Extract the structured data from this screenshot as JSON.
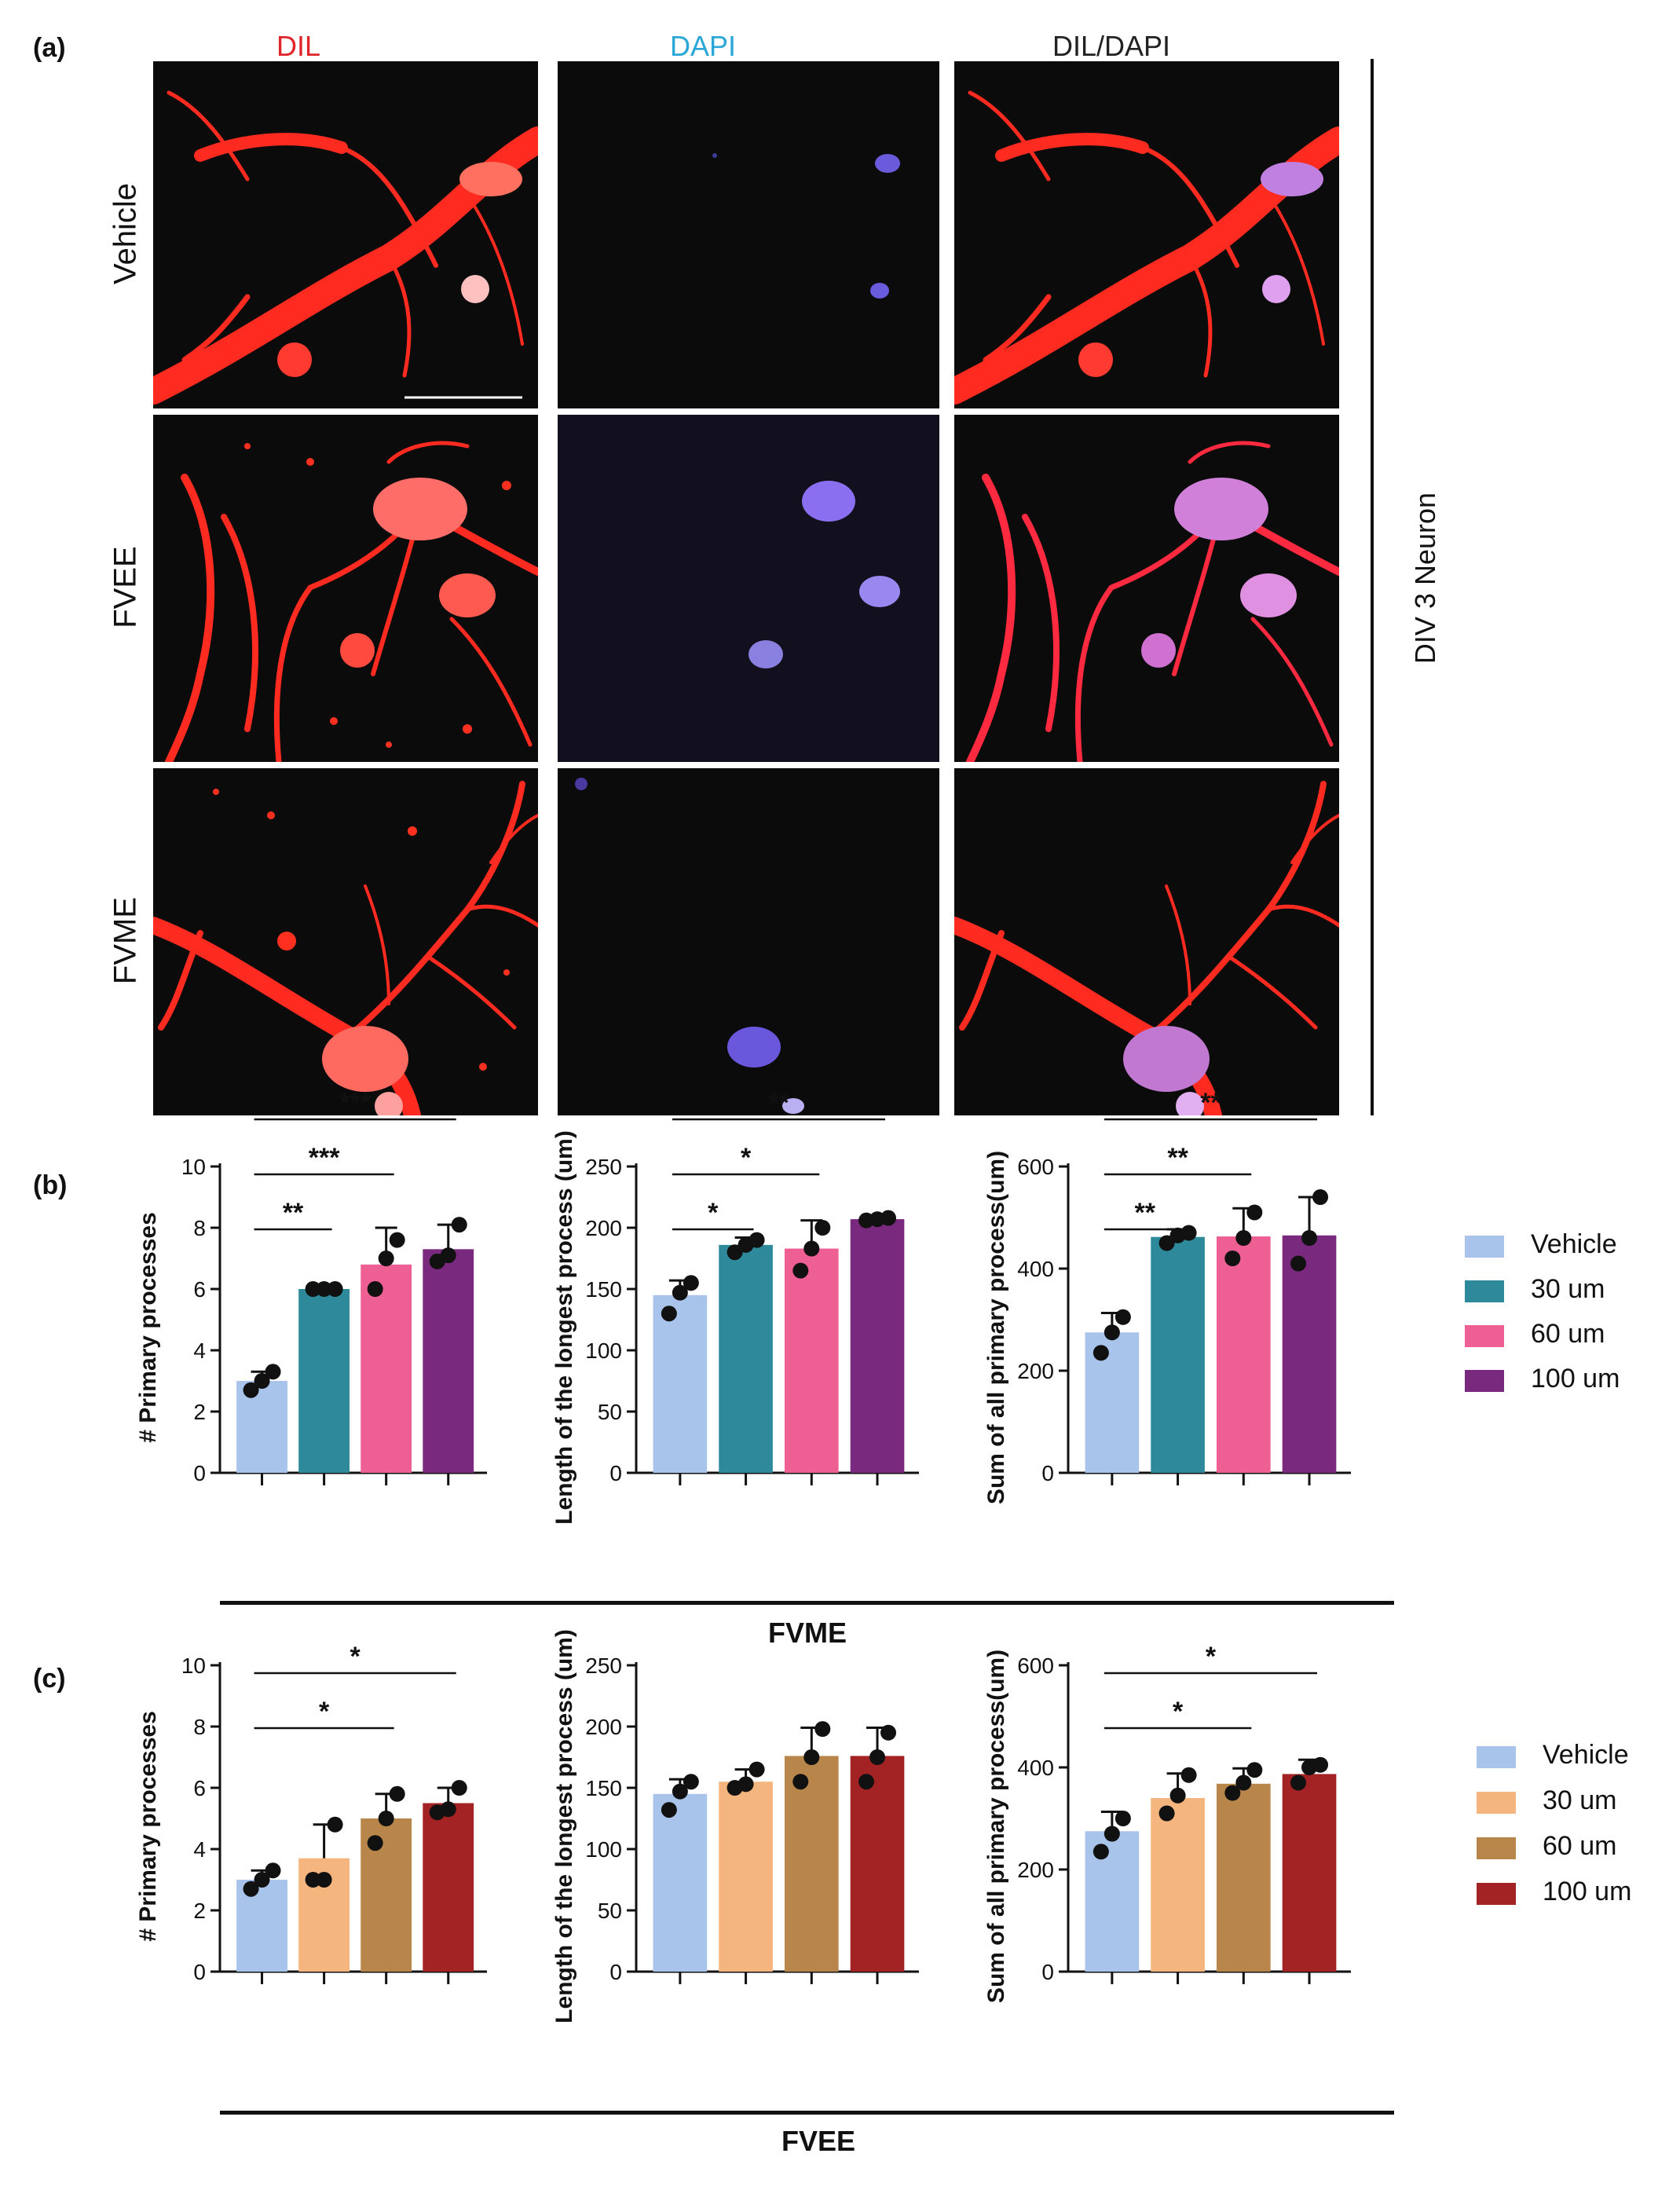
{
  "panel_a": {
    "letter": "(a)",
    "columns": [
      {
        "label": "DIL",
        "color": "#e0262a"
      },
      {
        "label": "DAPI",
        "color": "#2aa7d6"
      },
      {
        "label": "DIL/DAPI",
        "color": "#222222"
      }
    ],
    "rows": [
      "Vehicle",
      "FVEE",
      "FVME"
    ],
    "side_label": "DIV 3 Neuron"
  },
  "panel_b": {
    "letter": "(b)",
    "group_label": "FVME",
    "legend": [
      {
        "label": "Vehicle",
        "color": "#a9c4ea"
      },
      {
        "label": "30 um",
        "color": "#2e8a9a"
      },
      {
        "label": "60 um",
        "color": "#ee5f93"
      },
      {
        "label": "100 um",
        "color": "#7a2a7e"
      }
    ]
  },
  "panel_c": {
    "letter": "(c)",
    "group_label": "FVEE",
    "legend": [
      {
        "label": "Vehicle",
        "color": "#a9c4ea"
      },
      {
        "label": "30 um",
        "color": "#f5b57e"
      },
      {
        "label": "60 um",
        "color": "#b8864a"
      },
      {
        "label": "100 um",
        "color": "#a32224"
      }
    ]
  },
  "chart_data": [
    {
      "type": "bar",
      "panel": "b",
      "ylabel": "# Primary processes",
      "ylim": [
        0,
        10
      ],
      "yticks": [
        0,
        2,
        4,
        6,
        8,
        10
      ],
      "categories": [
        "Vehicle",
        "30 um",
        "60 um",
        "100 um"
      ],
      "values": [
        3.0,
        6.0,
        6.8,
        7.3
      ],
      "errors": [
        0.3,
        0.0,
        1.2,
        0.8
      ],
      "points": [
        [
          2.7,
          3.0,
          3.3
        ],
        [
          6.0,
          6.0,
          6.0
        ],
        [
          6.0,
          7.0,
          7.6
        ],
        [
          6.9,
          7.1,
          8.1
        ]
      ],
      "colors": [
        "#a9c4ea",
        "#2e8a9a",
        "#ee5f93",
        "#7a2a7e"
      ],
      "significance": [
        {
          "from": 0,
          "to": 1,
          "label": "**"
        },
        {
          "from": 0,
          "to": 2,
          "label": "***"
        },
        {
          "from": 0,
          "to": 3,
          "label": "***"
        }
      ]
    },
    {
      "type": "bar",
      "panel": "b",
      "ylabel": "Length of the longest process (um)",
      "ylim": [
        0,
        250
      ],
      "yticks": [
        0,
        50,
        100,
        150,
        200,
        250
      ],
      "categories": [
        "Vehicle",
        "30 um",
        "60 um",
        "100 um"
      ],
      "values": [
        145,
        186,
        183,
        207
      ],
      "errors": [
        12,
        6,
        23,
        1
      ],
      "points": [
        [
          130,
          147,
          155
        ],
        [
          180,
          186,
          190
        ],
        [
          165,
          183,
          200
        ],
        [
          206,
          207,
          208
        ]
      ],
      "colors": [
        "#a9c4ea",
        "#2e8a9a",
        "#ee5f93",
        "#7a2a7e"
      ],
      "significance": [
        {
          "from": 0,
          "to": 1,
          "label": "*"
        },
        {
          "from": 0,
          "to": 2,
          "label": "*"
        },
        {
          "from": 0,
          "to": 3,
          "label": "**"
        }
      ]
    },
    {
      "type": "bar",
      "panel": "b",
      "ylabel": "Sum of all primary process(um)",
      "ylim": [
        0,
        600
      ],
      "yticks": [
        0,
        200,
        400,
        600
      ],
      "categories": [
        "Vehicle",
        "30 um",
        "60 um",
        "100 um"
      ],
      "values": [
        275,
        462,
        463,
        465
      ],
      "errors": [
        38,
        15,
        55,
        75
      ],
      "points": [
        [
          235,
          275,
          305
        ],
        [
          450,
          465,
          470
        ],
        [
          420,
          460,
          510
        ],
        [
          410,
          460,
          540
        ]
      ],
      "colors": [
        "#a9c4ea",
        "#2e8a9a",
        "#ee5f93",
        "#7a2a7e"
      ],
      "significance": [
        {
          "from": 0,
          "to": 1,
          "label": "**"
        },
        {
          "from": 0,
          "to": 2,
          "label": "**"
        },
        {
          "from": 0,
          "to": 3,
          "label": "**"
        }
      ]
    },
    {
      "type": "bar",
      "panel": "c",
      "ylabel": "# Primary processes",
      "ylim": [
        0,
        10
      ],
      "yticks": [
        0,
        2,
        4,
        6,
        8,
        10
      ],
      "categories": [
        "Vehicle",
        "30 um",
        "60 um",
        "100 um"
      ],
      "values": [
        3.0,
        3.7,
        5.0,
        5.5
      ],
      "errors": [
        0.3,
        1.1,
        0.8,
        0.5
      ],
      "points": [
        [
          2.7,
          3.0,
          3.3
        ],
        [
          3.0,
          3.0,
          4.8
        ],
        [
          4.2,
          5.0,
          5.8
        ],
        [
          5.2,
          5.3,
          6.0
        ]
      ],
      "colors": [
        "#a9c4ea",
        "#f5b57e",
        "#b8864a",
        "#a32224"
      ],
      "significance": [
        {
          "from": 0,
          "to": 2,
          "label": "*"
        },
        {
          "from": 0,
          "to": 3,
          "label": "*"
        }
      ]
    },
    {
      "type": "bar",
      "panel": "c",
      "ylabel": "Length of the longest process (um)",
      "ylim": [
        0,
        250
      ],
      "yticks": [
        0,
        50,
        100,
        150,
        200,
        250
      ],
      "categories": [
        "Vehicle",
        "30 um",
        "60 um",
        "100 um"
      ],
      "values": [
        145,
        155,
        176,
        176
      ],
      "errors": [
        12,
        10,
        23,
        23
      ],
      "points": [
        [
          132,
          147,
          155
        ],
        [
          150,
          153,
          165
        ],
        [
          155,
          175,
          198
        ],
        [
          155,
          175,
          195
        ]
      ],
      "colors": [
        "#a9c4ea",
        "#f5b57e",
        "#b8864a",
        "#a32224"
      ],
      "significance": []
    },
    {
      "type": "bar",
      "panel": "c",
      "ylabel": "Sum of all primary process(um)",
      "ylim": [
        0,
        600
      ],
      "yticks": [
        0,
        200,
        400,
        600
      ],
      "categories": [
        "Vehicle",
        "30 um",
        "60 um",
        "100 um"
      ],
      "values": [
        275,
        340,
        368,
        387
      ],
      "errors": [
        38,
        48,
        30,
        28
      ],
      "points": [
        [
          235,
          270,
          300
        ],
        [
          310,
          345,
          385
        ],
        [
          350,
          370,
          395
        ],
        [
          370,
          400,
          405
        ]
      ],
      "colors": [
        "#a9c4ea",
        "#f5b57e",
        "#b8864a",
        "#a32224"
      ],
      "significance": [
        {
          "from": 0,
          "to": 2,
          "label": "*"
        },
        {
          "from": 0,
          "to": 3,
          "label": "*"
        }
      ]
    }
  ]
}
